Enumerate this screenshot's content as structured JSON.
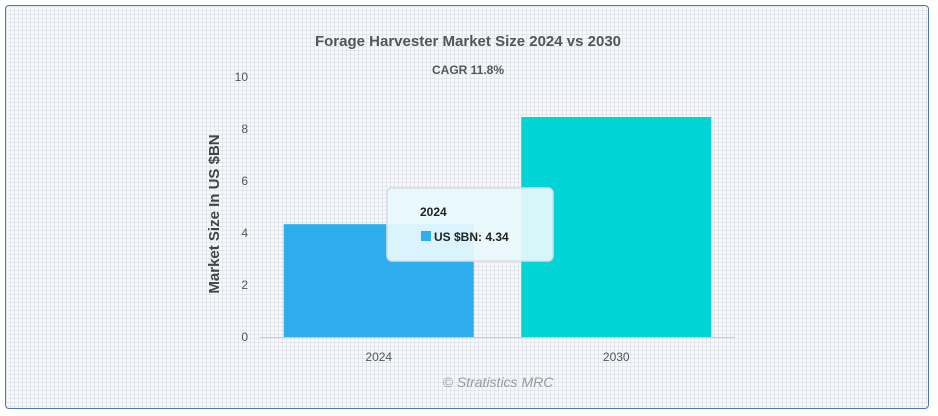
{
  "chart_data": {
    "type": "bar",
    "title": "Forage Harvester Market Size 2024 vs 2030",
    "subtitle": "CAGR 11.8%",
    "ylabel": "Market Size In US $BN",
    "xlabel": "",
    "categories": [
      "2024",
      "2030"
    ],
    "series": [
      {
        "values": [
          4.34,
          8.46
        ]
      }
    ],
    "bar_colors": [
      "#2eaeed",
      "#00d4d4"
    ],
    "ylim": [
      0,
      10
    ],
    "yticks": [
      0,
      2,
      4,
      6,
      8,
      10
    ],
    "grid": false,
    "legend": "none",
    "tooltip": {
      "category": "2024",
      "label": "US $BN: 4.34",
      "color": "#2eaeed"
    },
    "credit": "© Stratistics MRC"
  }
}
